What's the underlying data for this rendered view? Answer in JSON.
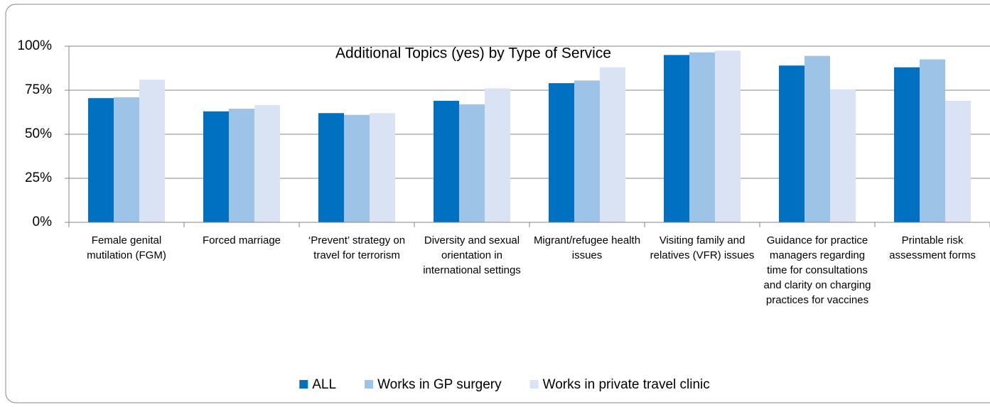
{
  "chart_data": {
    "type": "bar",
    "title": "Additional Topics (yes) by Type of Service",
    "categories": [
      "Female genital mutilation (FGM)",
      "Forced marriage",
      "‘Prevent’ strategy on travel for terrorism",
      "Diversity and sexual orientation in international settings",
      "Migrant/refugee health issues",
      "Visiting family and relatives (VFR) issues",
      "Guidance for practice managers regarding time for consultations and clarity on charging practices for vaccines",
      "Printable risk assessment forms"
    ],
    "series": [
      {
        "name": "ALL",
        "color": "#0070c0",
        "values": [
          70.5,
          63,
          62,
          69,
          79,
          95,
          89,
          88
        ]
      },
      {
        "name": "Works in GP surgery",
        "color": "#9dc3e6",
        "values": [
          71,
          64.5,
          61,
          67,
          80.5,
          96.5,
          94.5,
          92.5
        ]
      },
      {
        "name": "Works in private travel clinic",
        "color": "#dae3f3",
        "values": [
          81,
          66.5,
          62,
          76,
          88,
          97.5,
          75.5,
          69
        ]
      }
    ],
    "ylim": [
      0,
      100
    ],
    "yticks": [
      {
        "value": 0,
        "label": "0%"
      },
      {
        "value": 25,
        "label": "25%"
      },
      {
        "value": 50,
        "label": "50%"
      },
      {
        "value": 75,
        "label": "75%"
      },
      {
        "value": 100,
        "label": "100%"
      }
    ],
    "grid": true,
    "legend": "bottom"
  }
}
